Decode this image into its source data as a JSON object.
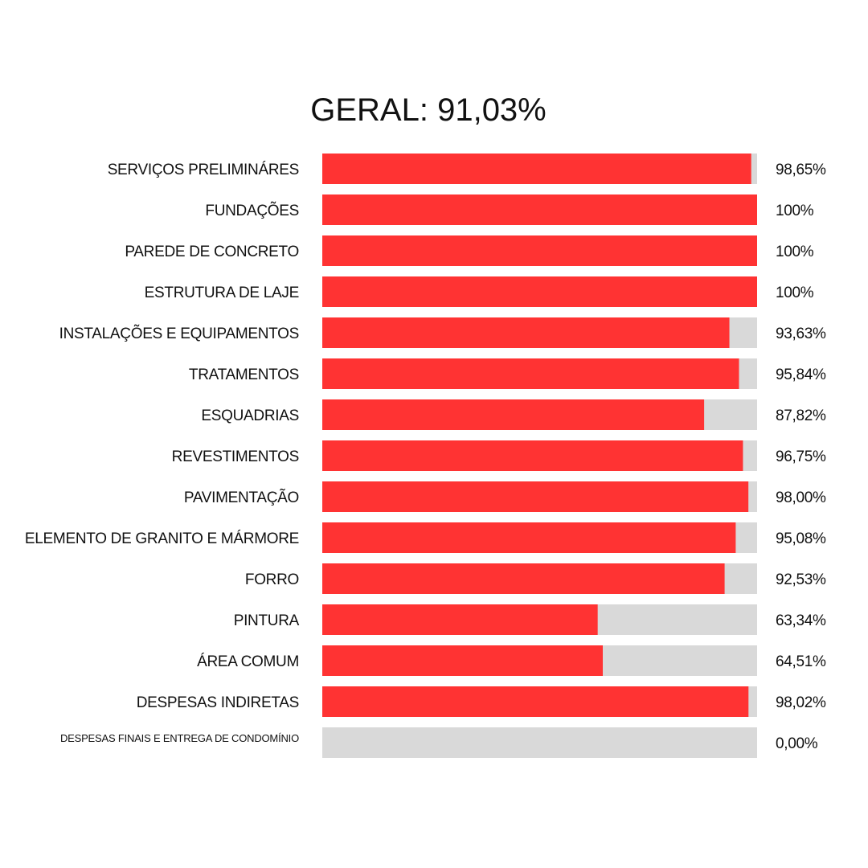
{
  "chart_data": {
    "type": "bar",
    "orientation": "horizontal",
    "title": "GERAL: 91,03%",
    "xlim": [
      0,
      100
    ],
    "grid": false,
    "categories": [
      "SERVIÇOS PRELIMINÁRES",
      "FUNDAÇÕES",
      "PAREDE DE CONCRETO",
      "ESTRUTURA DE LAJE",
      "INSTALAÇÕES E EQUIPAMENTOS",
      "TRATAMENTOS",
      "ESQUADRIAS",
      "REVESTIMENTOS",
      "PAVIMENTAÇÃO",
      "ELEMENTO DE GRANITO E MÁRMORE",
      "FORRO",
      "PINTURA",
      "ÁREA COMUM",
      "DESPESAS INDIRETAS",
      "DESPESAS FINAIS E ENTREGA DE CONDOMÍNIO"
    ],
    "values": [
      98.65,
      100,
      100,
      100,
      93.63,
      95.84,
      87.82,
      96.75,
      98.0,
      95.08,
      92.53,
      63.34,
      64.51,
      98.02,
      0.0
    ],
    "value_labels": [
      "98,65%",
      "100%",
      "100%",
      "100%",
      "93,63%",
      "95,84%",
      "87,82%",
      "96,75%",
      "98,00%",
      "95,08%",
      "92,53%",
      "63,34%",
      "64,51%",
      "98,02%",
      "0,00%"
    ],
    "small_label_categories": [
      14
    ]
  },
  "colors": {
    "progress": "#ff3333",
    "track": "#d9d9d9",
    "text": "#111111",
    "background": "#ffffff"
  }
}
